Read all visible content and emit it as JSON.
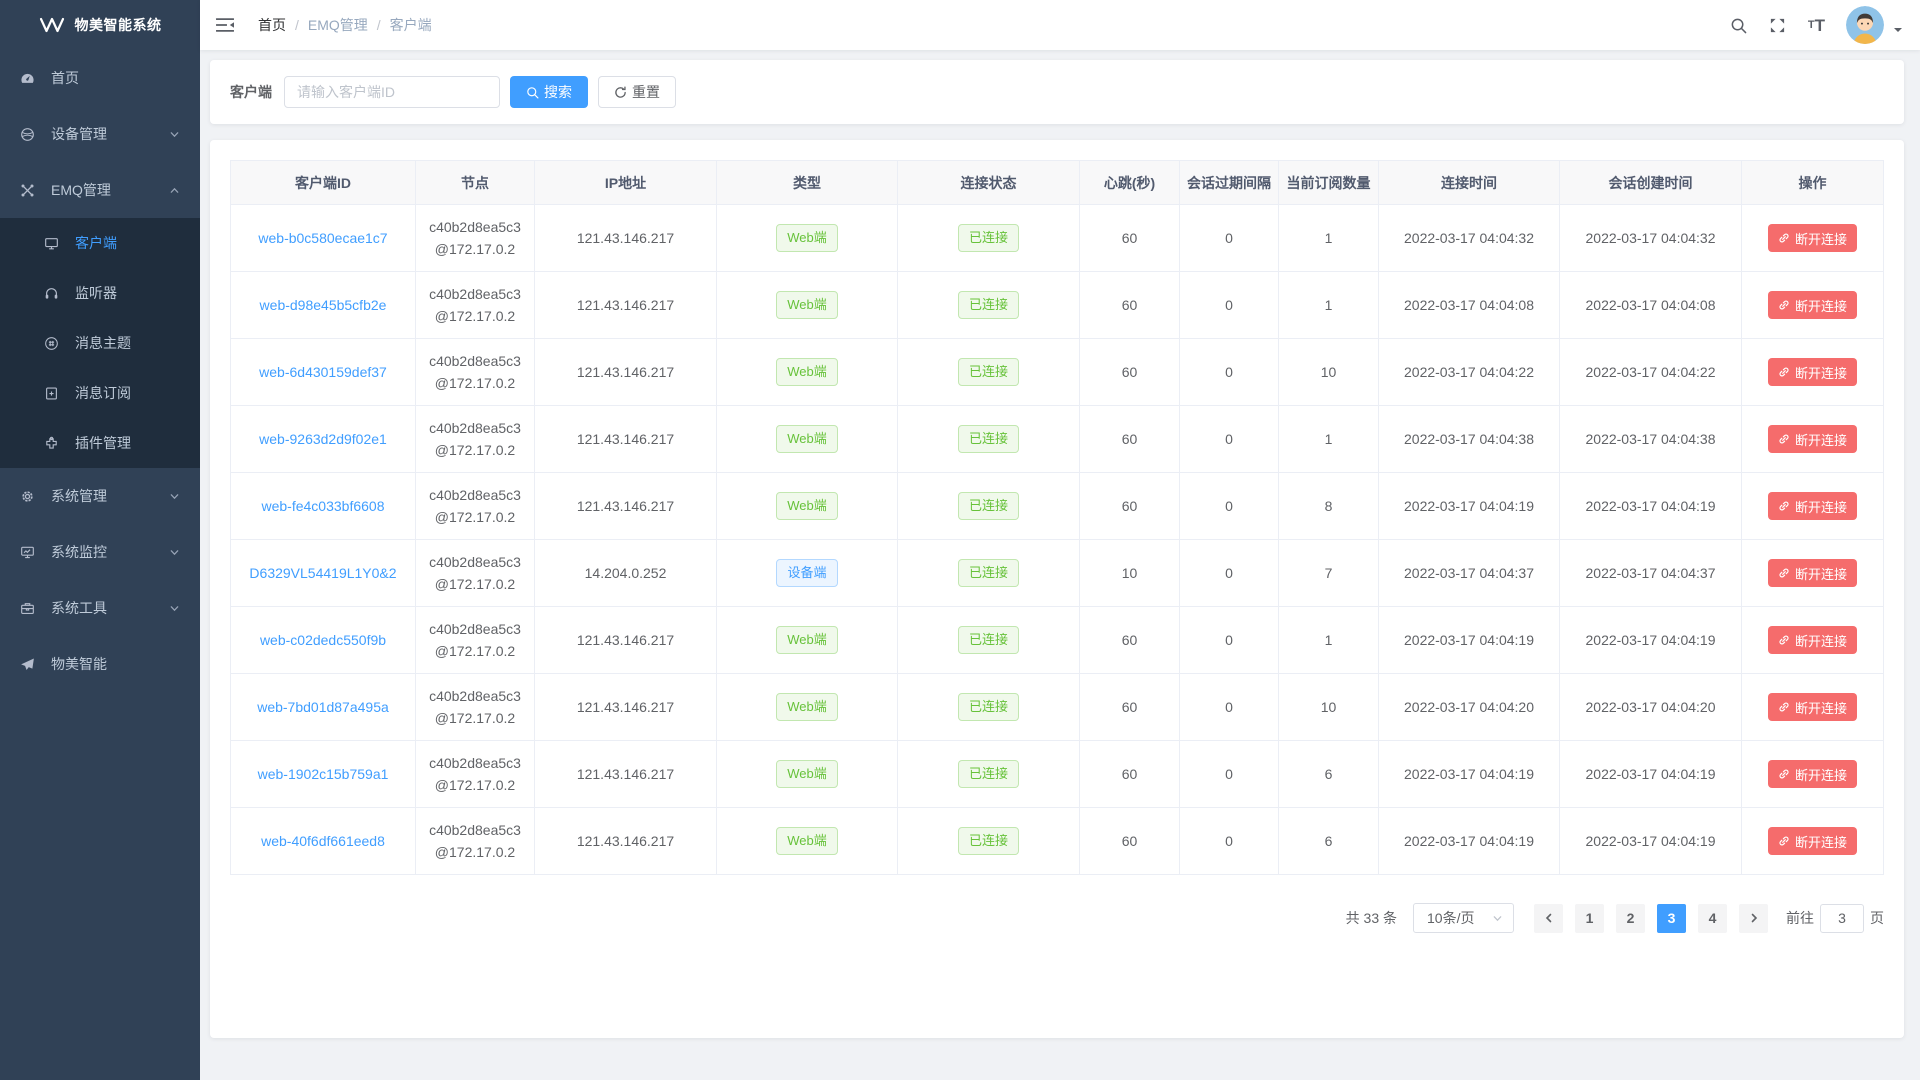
{
  "colors": {
    "accent": "#409eff",
    "success": "#67c23a",
    "danger": "#f56c6c",
    "sidebar_bg": "#304156",
    "submenu_bg": "#1f2d3d"
  },
  "app": {
    "title": "物美智能系统"
  },
  "sidebar": {
    "items": [
      {
        "label": "首页",
        "icon": "dashboard-icon"
      },
      {
        "label": "设备管理",
        "icon": "globe-icon",
        "chevron": "down"
      },
      {
        "label": "EMQ管理",
        "icon": "drone-icon",
        "chevron": "up",
        "children": [
          {
            "label": "客户端",
            "icon": "client-monitor-icon",
            "active": true
          },
          {
            "label": "监听器",
            "icon": "headset-icon"
          },
          {
            "label": "消息主题",
            "icon": "topic-hash-icon"
          },
          {
            "label": "消息订阅",
            "icon": "subscription-icon"
          },
          {
            "label": "插件管理",
            "icon": "plugin-icon"
          }
        ]
      },
      {
        "label": "系统管理",
        "icon": "gear-icon",
        "chevron": "down"
      },
      {
        "label": "系统监控",
        "icon": "monitor-chart-icon",
        "chevron": "down"
      },
      {
        "label": "系统工具",
        "icon": "toolbox-icon",
        "chevron": "down"
      },
      {
        "label": "物美智能",
        "icon": "paper-plane-icon"
      }
    ]
  },
  "navbar": {
    "breadcrumb": [
      {
        "label": "首页"
      },
      {
        "label": "EMQ管理"
      },
      {
        "label": "客户端"
      }
    ],
    "right_icons": [
      "search-icon",
      "fullscreen-icon",
      "font-size-icon",
      "avatar",
      "caret-down-icon"
    ]
  },
  "search": {
    "label": "客户端",
    "placeholder": "请输入客户端ID",
    "search_button": "搜索",
    "reset_button": "重置"
  },
  "table": {
    "headers": [
      "客户端ID",
      "节点",
      "IP地址",
      "类型",
      "连接状态",
      "心跳(秒)",
      "会话过期间隔",
      "当前订阅数量",
      "连接时间",
      "会话创建时间",
      "操作"
    ],
    "disconnect_button": "断开连接",
    "rows": [
      {
        "client_id": "web-b0c580ecae1c7",
        "node_name": "c40b2d8ea5c3",
        "node_addr": "@172.17.0.2",
        "ip": "121.43.146.217",
        "type": "Web端",
        "type_kind": "web",
        "status": "已连接",
        "heartbeat": "60",
        "session_expiry": "0",
        "subscriptions": "1",
        "connected_at": "2022-03-17 04:04:32",
        "session_created_at": "2022-03-17 04:04:32"
      },
      {
        "client_id": "web-d98e45b5cfb2e",
        "node_name": "c40b2d8ea5c3",
        "node_addr": "@172.17.0.2",
        "ip": "121.43.146.217",
        "type": "Web端",
        "type_kind": "web",
        "status": "已连接",
        "heartbeat": "60",
        "session_expiry": "0",
        "subscriptions": "1",
        "connected_at": "2022-03-17 04:04:08",
        "session_created_at": "2022-03-17 04:04:08"
      },
      {
        "client_id": "web-6d430159def37",
        "node_name": "c40b2d8ea5c3",
        "node_addr": "@172.17.0.2",
        "ip": "121.43.146.217",
        "type": "Web端",
        "type_kind": "web",
        "status": "已连接",
        "heartbeat": "60",
        "session_expiry": "0",
        "subscriptions": "10",
        "connected_at": "2022-03-17 04:04:22",
        "session_created_at": "2022-03-17 04:04:22"
      },
      {
        "client_id": "web-9263d2d9f02e1",
        "node_name": "c40b2d8ea5c3",
        "node_addr": "@172.17.0.2",
        "ip": "121.43.146.217",
        "type": "Web端",
        "type_kind": "web",
        "status": "已连接",
        "heartbeat": "60",
        "session_expiry": "0",
        "subscriptions": "1",
        "connected_at": "2022-03-17 04:04:38",
        "session_created_at": "2022-03-17 04:04:38"
      },
      {
        "client_id": "web-fe4c033bf6608",
        "node_name": "c40b2d8ea5c3",
        "node_addr": "@172.17.0.2",
        "ip": "121.43.146.217",
        "type": "Web端",
        "type_kind": "web",
        "status": "已连接",
        "heartbeat": "60",
        "session_expiry": "0",
        "subscriptions": "8",
        "connected_at": "2022-03-17 04:04:19",
        "session_created_at": "2022-03-17 04:04:19"
      },
      {
        "client_id": "D6329VL54419L1Y0&2",
        "node_name": "c40b2d8ea5c3",
        "node_addr": "@172.17.0.2",
        "ip": "14.204.0.252",
        "type": "设备端",
        "type_kind": "device",
        "status": "已连接",
        "heartbeat": "10",
        "session_expiry": "0",
        "subscriptions": "7",
        "connected_at": "2022-03-17 04:04:37",
        "session_created_at": "2022-03-17 04:04:37"
      },
      {
        "client_id": "web-c02dedc550f9b",
        "node_name": "c40b2d8ea5c3",
        "node_addr": "@172.17.0.2",
        "ip": "121.43.146.217",
        "type": "Web端",
        "type_kind": "web",
        "status": "已连接",
        "heartbeat": "60",
        "session_expiry": "0",
        "subscriptions": "1",
        "connected_at": "2022-03-17 04:04:19",
        "session_created_at": "2022-03-17 04:04:19"
      },
      {
        "client_id": "web-7bd01d87a495a",
        "node_name": "c40b2d8ea5c3",
        "node_addr": "@172.17.0.2",
        "ip": "121.43.146.217",
        "type": "Web端",
        "type_kind": "web",
        "status": "已连接",
        "heartbeat": "60",
        "session_expiry": "0",
        "subscriptions": "10",
        "connected_at": "2022-03-17 04:04:20",
        "session_created_at": "2022-03-17 04:04:20"
      },
      {
        "client_id": "web-1902c15b759a1",
        "node_name": "c40b2d8ea5c3",
        "node_addr": "@172.17.0.2",
        "ip": "121.43.146.217",
        "type": "Web端",
        "type_kind": "web",
        "status": "已连接",
        "heartbeat": "60",
        "session_expiry": "0",
        "subscriptions": "6",
        "connected_at": "2022-03-17 04:04:19",
        "session_created_at": "2022-03-17 04:04:19"
      },
      {
        "client_id": "web-40f6df661eed8",
        "node_name": "c40b2d8ea5c3",
        "node_addr": "@172.17.0.2",
        "ip": "121.43.146.217",
        "type": "Web端",
        "type_kind": "web",
        "status": "已连接",
        "heartbeat": "60",
        "session_expiry": "0",
        "subscriptions": "6",
        "connected_at": "2022-03-17 04:04:19",
        "session_created_at": "2022-03-17 04:04:19"
      }
    ]
  },
  "pagination": {
    "total": "共 33 条",
    "page_size": "10条/页",
    "pages": [
      "1",
      "2",
      "3",
      "4"
    ],
    "active_page": "3",
    "goto_label": "前往",
    "goto_value": "3",
    "goto_suffix": "页"
  }
}
